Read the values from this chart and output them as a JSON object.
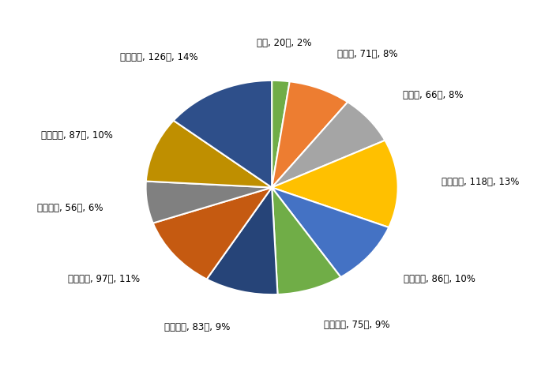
{
  "labels": [
    "０歳, 20人, 2%",
    "１歳～, 71人, 8%",
    "５歳～, 66人, 8%",
    "１０歳～, 118人, 13%",
    "２０歳～, 86人, 10%",
    "３０歳～, 75人, 9%",
    "４０歳～, 83人, 9%",
    "５０歳～, 97人, 11%",
    "６０歳～, 56人, 6%",
    "７０歳～, 87人, 10%",
    "８０歳～, 126人, 14%"
  ],
  "values": [
    20,
    71,
    66,
    118,
    86,
    75,
    83,
    97,
    56,
    87,
    126
  ],
  "colors": [
    "#70ad47",
    "#ed7d31",
    "#a5a5a5",
    "#ffc000",
    "#4472c4",
    "#70ad47",
    "#264478",
    "#c55a11",
    "#808080",
    "#bf8f00",
    "#2e4f8a"
  ],
  "startangle": 90,
  "figsize": [
    6.9,
    4.75
  ],
  "dpi": 100
}
